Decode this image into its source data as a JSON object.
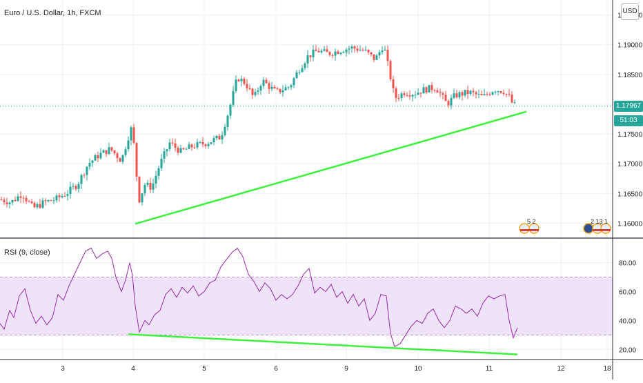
{
  "header": {
    "title": "Euro / U.S. Dollar, 1h, FXCM",
    "currency": "USD",
    "rsi_title": "RSI (9, close)"
  },
  "colors": {
    "up": "#26a69a",
    "down": "#ef5350",
    "trend": "#3cf03c",
    "rsi": "#9c27b0",
    "rsi_band": "#efe3fb",
    "price_tag": "#26a69a"
  },
  "events": {
    "group1": "5 2",
    "group2": "2 13 1"
  },
  "price_tags": {
    "last": "1.17967",
    "countdown": "51:03"
  },
  "chart_data": [
    {
      "type": "candlestick",
      "title": "Euro / U.S. Dollar, 1h, FXCM",
      "x_ticks": [
        "3",
        "4",
        "5",
        "6",
        "9",
        "10",
        "11",
        "12",
        "18"
      ],
      "y_ticks": [
        "1.16000",
        "1.16500",
        "1.17000",
        "1.17500",
        "1.18000",
        "1.18500",
        "1.19000",
        "1.19500"
      ],
      "ylim": [
        1.1575,
        1.1975
      ],
      "grid": true,
      "trendline": {
        "from": [
          "4",
          1.1599
        ],
        "to": [
          "11",
          1.1784
        ]
      },
      "path": [
        [
          0,
          1.164
        ],
        [
          16,
          1.1635
        ],
        [
          32,
          1.165
        ],
        [
          48,
          1.1625
        ],
        [
          64,
          1.1635
        ],
        [
          80,
          1.164
        ],
        [
          96,
          1.165
        ],
        [
          112,
          1.1665
        ],
        [
          128,
          1.17
        ],
        [
          144,
          1.1715
        ],
        [
          160,
          1.1725
        ],
        [
          176,
          1.1705
        ],
        [
          186,
          1.1745
        ],
        [
          192,
          1.1765
        ],
        [
          196,
          1.17
        ],
        [
          202,
          1.164
        ],
        [
          210,
          1.1665
        ],
        [
          220,
          1.166
        ],
        [
          232,
          1.17
        ],
        [
          246,
          1.1735
        ],
        [
          262,
          1.172
        ],
        [
          280,
          1.173
        ],
        [
          300,
          1.1735
        ],
        [
          320,
          1.1745
        ],
        [
          332,
          1.179
        ],
        [
          344,
          1.1845
        ],
        [
          356,
          1.1835
        ],
        [
          368,
          1.181
        ],
        [
          380,
          1.184
        ],
        [
          400,
          1.182
        ],
        [
          420,
          1.183
        ],
        [
          434,
          1.186
        ],
        [
          446,
          1.188
        ],
        [
          460,
          1.189
        ],
        [
          476,
          1.1885
        ],
        [
          492,
          1.189
        ],
        [
          510,
          1.1895
        ],
        [
          528,
          1.189
        ],
        [
          544,
          1.1875
        ],
        [
          556,
          1.19
        ],
        [
          566,
          1.1845
        ],
        [
          572,
          1.181
        ],
        [
          586,
          1.182
        ],
        [
          600,
          1.1818
        ],
        [
          616,
          1.1825
        ],
        [
          632,
          1.1828
        ],
        [
          648,
          1.18
        ],
        [
          660,
          1.1815
        ],
        [
          680,
          1.182
        ],
        [
          700,
          1.1812
        ],
        [
          716,
          1.1825
        ],
        [
          730,
          1.1822
        ],
        [
          738,
          1.1812
        ],
        [
          744,
          1.1798
        ]
      ]
    },
    {
      "type": "line",
      "title": "RSI (9, close)",
      "y_ticks": [
        "20.00",
        "40.00",
        "60.00",
        "80.00"
      ],
      "ylim": [
        13,
        97
      ],
      "bands": [
        30,
        70
      ],
      "trendline": {
        "from": [
          "4",
          30.5
        ],
        "to": [
          "11",
          16.5
        ]
      },
      "series": [
        {
          "values": [
            [
              0,
              38
            ],
            [
              6,
              34
            ],
            [
              14,
              47
            ],
            [
              20,
              42
            ],
            [
              28,
              57
            ],
            [
              36,
              62
            ],
            [
              44,
              47
            ],
            [
              52,
              38
            ],
            [
              60,
              43
            ],
            [
              68,
              37
            ],
            [
              76,
              42
            ],
            [
              84,
              58
            ],
            [
              92,
              54
            ],
            [
              100,
              64
            ],
            [
              108,
              72
            ],
            [
              116,
              80
            ],
            [
              124,
              88
            ],
            [
              132,
              90
            ],
            [
              140,
              83
            ],
            [
              148,
              86
            ],
            [
              156,
              88
            ],
            [
              162,
              83
            ],
            [
              168,
              70
            ],
            [
              176,
              60
            ],
            [
              182,
              68
            ],
            [
              188,
              80
            ],
            [
              192,
              71
            ],
            [
              196,
              50
            ],
            [
              202,
              32
            ],
            [
              210,
              40
            ],
            [
              216,
              37
            ],
            [
              224,
              44
            ],
            [
              232,
              47
            ],
            [
              240,
              58
            ],
            [
              248,
              62
            ],
            [
              256,
              56
            ],
            [
              264,
              63
            ],
            [
              272,
              59
            ],
            [
              280,
              64
            ],
            [
              288,
              57
            ],
            [
              296,
              60
            ],
            [
              304,
              66
            ],
            [
              312,
              68
            ],
            [
              320,
              77
            ],
            [
              328,
              82
            ],
            [
              336,
              87
            ],
            [
              344,
              90
            ],
            [
              352,
              84
            ],
            [
              360,
              72
            ],
            [
              368,
              67
            ],
            [
              376,
              60
            ],
            [
              384,
              66
            ],
            [
              392,
              62
            ],
            [
              400,
              54
            ],
            [
              408,
              58
            ],
            [
              416,
              55
            ],
            [
              424,
              58
            ],
            [
              432,
              64
            ],
            [
              440,
              72
            ],
            [
              448,
              76
            ],
            [
              456,
              59
            ],
            [
              464,
              63
            ],
            [
              472,
              60
            ],
            [
              480,
              65
            ],
            [
              488,
              56
            ],
            [
              496,
              60
            ],
            [
              504,
              52
            ],
            [
              512,
              58
            ],
            [
              520,
              50
            ],
            [
              528,
              55
            ],
            [
              536,
              40
            ],
            [
              544,
              45
            ],
            [
              552,
              58
            ],
            [
              560,
              57
            ],
            [
              566,
              31
            ],
            [
              572,
              22
            ],
            [
              580,
              24
            ],
            [
              588,
              30
            ],
            [
              596,
              36
            ],
            [
              604,
              40
            ],
            [
              612,
              38
            ],
            [
              620,
              45
            ],
            [
              628,
              48
            ],
            [
              636,
              40
            ],
            [
              644,
              35
            ],
            [
              652,
              40
            ],
            [
              660,
              50
            ],
            [
              668,
              48
            ],
            [
              676,
              45
            ],
            [
              684,
              48
            ],
            [
              692,
              43
            ],
            [
              700,
              52
            ],
            [
              708,
              57
            ],
            [
              716,
              55
            ],
            [
              724,
              57
            ],
            [
              732,
              58
            ],
            [
              738,
              40
            ],
            [
              744,
              28
            ],
            [
              750,
              35
            ]
          ]
        }
      ]
    }
  ]
}
